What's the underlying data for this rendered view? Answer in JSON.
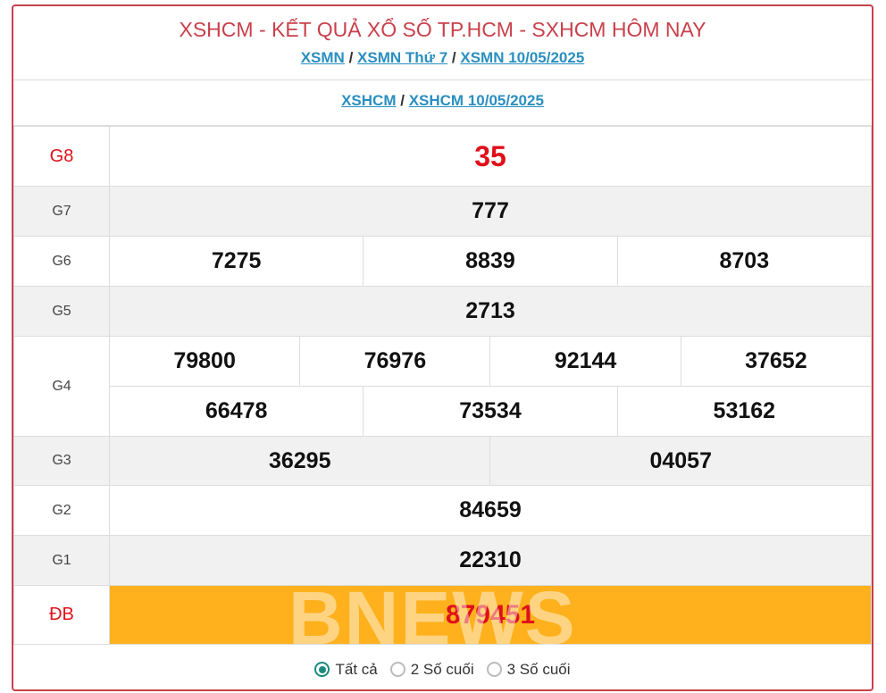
{
  "header": {
    "title": "XSHCM - KẾT QUẢ XỔ SỐ TP.HCM - SXHCM HÔM NAY",
    "links": [
      "XSMN",
      "XSMN Thứ 7",
      "XSMN 10/05/2025"
    ],
    "sublinks": [
      "XSHCM",
      "XSHCM 10/05/2025"
    ],
    "separator": "/"
  },
  "prizes": {
    "g8": {
      "label": "G8",
      "values": [
        "35"
      ]
    },
    "g7": {
      "label": "G7",
      "values": [
        "777"
      ]
    },
    "g6": {
      "label": "G6",
      "values": [
        "7275",
        "8839",
        "8703"
      ]
    },
    "g5": {
      "label": "G5",
      "values": [
        "2713"
      ]
    },
    "g4": {
      "label": "G4",
      "values": [
        "79800",
        "76976",
        "92144",
        "37652",
        "66478",
        "73534",
        "53162"
      ]
    },
    "g3": {
      "label": "G3",
      "values": [
        "36295",
        "04057"
      ]
    },
    "g2": {
      "label": "G2",
      "values": [
        "84659"
      ]
    },
    "g1": {
      "label": "G1",
      "values": [
        "22310"
      ]
    },
    "db": {
      "label": "ĐB",
      "values": [
        "879451"
      ]
    }
  },
  "watermark": "BNEWS",
  "filter": {
    "options": [
      "Tất cả",
      "2 Số cuối",
      "3 Số cuối"
    ],
    "selected": "Tất cả"
  },
  "colors": {
    "accent": "#c9404b",
    "link": "#2a8fbf",
    "special_bg": "#feb11d",
    "prize_red": "#e0101a"
  }
}
